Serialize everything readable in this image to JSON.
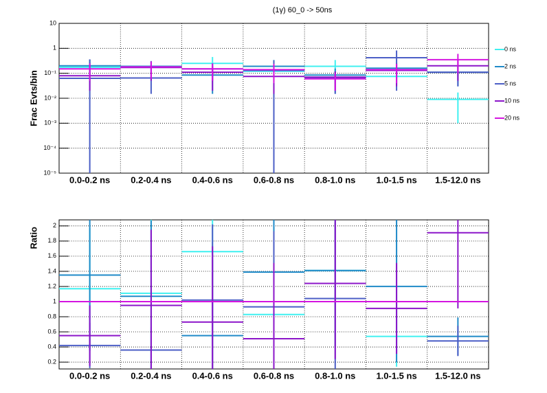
{
  "chart_data": [
    {
      "type": "errorbar",
      "title": "(1γ) 60_0 -> 50ns",
      "ylabel": "Frac Evts/bin",
      "log_y": true,
      "grid": true,
      "categories": [
        "0.0-0.2 ns",
        "0.2-0.4 ns",
        "0.4-0.6 ns",
        "0.6-0.8 ns",
        "0.8-1.0 ns",
        "1.0-1.5 ns",
        "1.5-12.0 ns"
      ],
      "ylim": [
        1e-05,
        10
      ],
      "yticks": [
        {
          "value": 1e-05,
          "label": "10⁻⁵"
        },
        {
          "value": 0.0001,
          "label": "10⁻⁴"
        },
        {
          "value": 0.001,
          "label": "10⁻³"
        },
        {
          "value": 0.01,
          "label": "10⁻²"
        },
        {
          "value": 0.1,
          "label": "10⁻¹"
        },
        1,
        10
      ],
      "legend": "right",
      "series": [
        {
          "name": "0 ns",
          "color": "#3ff0f0",
          "values": [
            0.175,
            0.19,
            0.25,
            0.12,
            0.19,
            0.075,
            0.009
          ],
          "errors": [
            0.1,
            0.1,
            0.2,
            0.1,
            0.15,
            0.04,
            0.008
          ]
        },
        {
          "name": "2 ns",
          "color": "#1f8ac8",
          "values": [
            0.2,
            0.19,
            0.085,
            0.19,
            0.085,
            0.16,
            0.11
          ],
          "errors": [
            0.15,
            0.12,
            0.07,
            0.15,
            0.07,
            0.1,
            0.08
          ]
        },
        {
          "name": "5 ns",
          "color": "#4b5ec6",
          "values": [
            0.063,
            0.065,
            0.15,
            0.13,
            0.065,
            0.42,
            0.11
          ],
          "errors": [
            0.3,
            0.05,
            0.1,
            0.2,
            0.05,
            0.4,
            0.08
          ]
        },
        {
          "name": "10 ns",
          "color": "#8b14c9",
          "values": [
            0.08,
            0.17,
            0.11,
            0.075,
            0.07,
            0.13,
            0.2
          ],
          "errors": [
            0.06,
            0.12,
            0.09,
            0.06,
            0.05,
            0.1,
            0.15
          ]
        },
        {
          "name": "20 ns",
          "color": "#d414e0",
          "values": [
            0.15,
            0.18,
            0.15,
            0.14,
            0.06,
            0.14,
            0.35
          ],
          "errors": [
            0.1,
            0.12,
            0.1,
            0.1,
            0.04,
            0.1,
            0.25
          ]
        }
      ]
    },
    {
      "type": "errorbar",
      "ylabel": "Ratio",
      "log_y": false,
      "grid": true,
      "categories": [
        "0.0-0.2 ns",
        "0.2-0.4 ns",
        "0.4-0.6 ns",
        "0.6-0.8 ns",
        "0.8-1.0 ns",
        "1.0-1.5 ns",
        "1.5-12.0 ns"
      ],
      "ylim": [
        0.11,
        2.08
      ],
      "yticks": [
        0.2,
        0.4,
        0.6,
        0.8,
        1,
        1.2,
        1.4,
        1.6,
        1.8,
        2
      ],
      "series": [
        {
          "name": "0 ns",
          "color": "#3ff0f0",
          "values": [
            1.17,
            1.11,
            1.66,
            0.83,
            1.41,
            0.54,
            null
          ],
          "errors": [
            0.8,
            1,
            1,
            0.8,
            1,
            0.4,
            null
          ]
        },
        {
          "name": "2 ns",
          "color": "#1f8ac8",
          "values": [
            1.35,
            1.07,
            0.55,
            1.39,
            1.41,
            1.2,
            0.54
          ],
          "errors": [
            1,
            1,
            1,
            1,
            1,
            1,
            0.25
          ]
        },
        {
          "name": "5 ns",
          "color": "#4b5ec6",
          "values": [
            0.42,
            0.36,
            1.02,
            0.93,
            1.04,
            null,
            0.48
          ],
          "errors": [
            0.3,
            0.3,
            1,
            1,
            1,
            null,
            0.2
          ]
        },
        {
          "name": "10 ns",
          "color": "#8b14c9",
          "values": [
            0.55,
            0.95,
            0.73,
            0.51,
            1.24,
            0.91,
            1.91
          ],
          "errors": [
            0.4,
            1,
            1,
            1,
            1,
            0.6,
            1
          ]
        },
        {
          "name": "20 ns",
          "color": "#d414e0",
          "values": [
            1,
            1,
            1,
            1,
            1,
            1,
            1
          ],
          "errors": [
            0,
            0,
            0,
            0,
            0,
            0,
            0
          ]
        }
      ]
    }
  ]
}
